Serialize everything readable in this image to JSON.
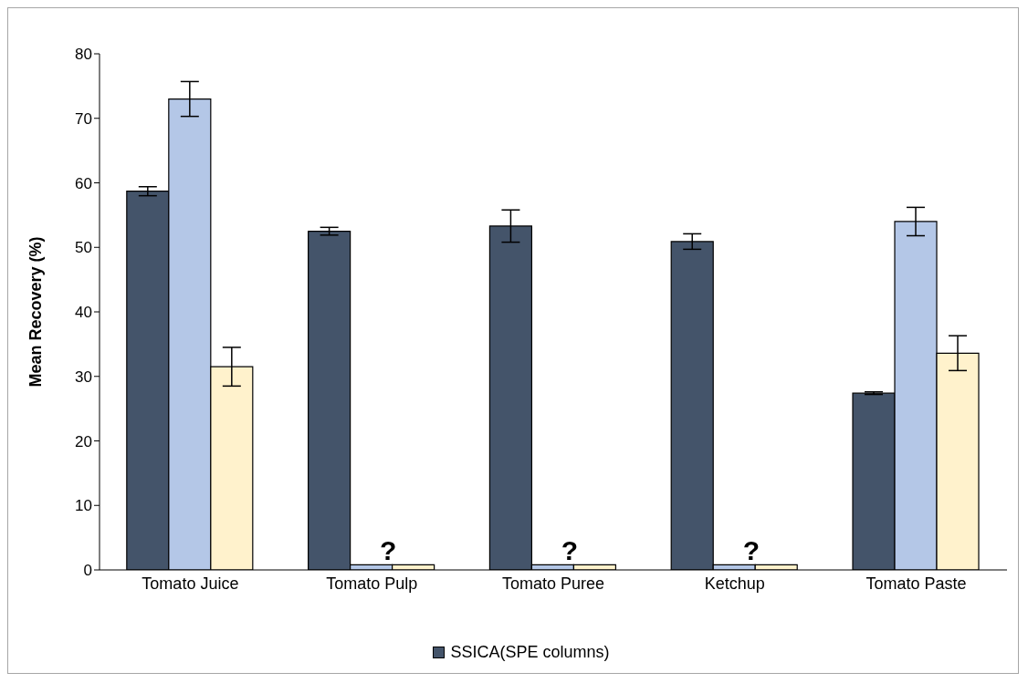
{
  "chart_data": {
    "type": "bar",
    "ylabel": "Mean Recovery (%)",
    "categories": [
      "Tomato Juice",
      "Tomato Pulp",
      "Tomato Puree",
      "Ketchup",
      "Tomato Paste"
    ],
    "series": [
      {
        "name": "SSICA(SPE columns)",
        "color": "#44546a",
        "values": [
          58.7,
          52.5,
          53.3,
          50.9,
          27.4
        ],
        "errors": [
          0.7,
          0.6,
          2.5,
          1.2,
          0.2
        ]
      },
      {
        "color": "#b4c7e7",
        "values": [
          73.0,
          0.8,
          0.8,
          0.8,
          54.0
        ],
        "errors": [
          2.7,
          null,
          null,
          null,
          2.2
        ]
      },
      {
        "color": "#fff2cc",
        "values": [
          31.5,
          0.8,
          0.8,
          0.8,
          33.6
        ],
        "errors": [
          3.0,
          null,
          null,
          null,
          2.7
        ]
      }
    ],
    "annotations": [
      {
        "text": "?",
        "x": "Tomato Pulp",
        "y": 0.8
      },
      {
        "text": "?",
        "x": "Tomato Puree",
        "y": 0.8
      },
      {
        "text": "?",
        "x": "Ketchup",
        "y": 0.8
      }
    ],
    "ylim": [
      0,
      80
    ],
    "yticks": [
      0,
      10,
      20,
      30,
      40,
      50,
      60,
      70,
      80
    ],
    "grid": false,
    "legend": "bottom"
  }
}
